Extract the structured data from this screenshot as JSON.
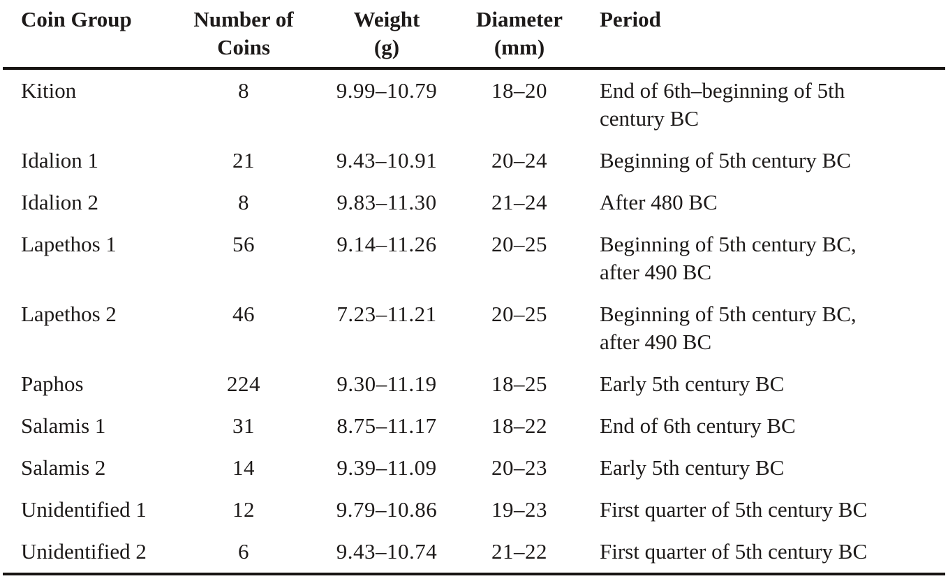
{
  "page": {
    "background_color": "#ffffff",
    "text_color": "#1d1a19",
    "rule_color": "#171412"
  },
  "table": {
    "headers": [
      {
        "id": "coin_group",
        "lines": [
          "Coin Group"
        ]
      },
      {
        "id": "number_of_coins",
        "lines": [
          "Number of",
          "Coins"
        ]
      },
      {
        "id": "weight_g",
        "lines": [
          "Weight",
          "(g)"
        ]
      },
      {
        "id": "diameter_mm",
        "lines": [
          "Diameter",
          "(mm)"
        ]
      },
      {
        "id": "period",
        "lines": [
          "Period"
        ]
      }
    ],
    "rows": [
      {
        "coin_group": "Kition",
        "number_of_coins": "8",
        "weight_g": "9.99–10.79",
        "diameter_mm": "18–20",
        "period": "End of 6th–beginning of 5th century BC"
      },
      {
        "coin_group": "Idalion 1",
        "number_of_coins": "21",
        "weight_g": "9.43–10.91",
        "diameter_mm": "20–24",
        "period": "Beginning of 5th century BC"
      },
      {
        "coin_group": "Idalion 2",
        "number_of_coins": "8",
        "weight_g": "9.83–11.30",
        "diameter_mm": "21–24",
        "period": "After 480 BC"
      },
      {
        "coin_group": "Lapethos 1",
        "number_of_coins": "56",
        "weight_g": "9.14–11.26",
        "diameter_mm": "20–25",
        "period": "Beginning of 5th century BC, after 490 BC"
      },
      {
        "coin_group": "Lapethos 2",
        "number_of_coins": "46",
        "weight_g": "7.23–11.21",
        "diameter_mm": "20–25",
        "period": "Beginning of 5th century BC, after 490 BC"
      },
      {
        "coin_group": "Paphos",
        "number_of_coins": "224",
        "weight_g": "9.30–11.19",
        "diameter_mm": "18–25",
        "period": "Early 5th century BC"
      },
      {
        "coin_group": "Salamis 1",
        "number_of_coins": "31",
        "weight_g": "8.75–11.17",
        "diameter_mm": "18–22",
        "period": "End of 6th century BC"
      },
      {
        "coin_group": "Salamis 2",
        "number_of_coins": "14",
        "weight_g": "9.39–11.09",
        "diameter_mm": "20–23",
        "period": "Early 5th century BC"
      },
      {
        "coin_group": "Unidentified 1",
        "number_of_coins": "12",
        "weight_g": "9.79–10.86",
        "diameter_mm": "19–23",
        "period": "First quarter of 5th century BC"
      },
      {
        "coin_group": "Unidentified 2",
        "number_of_coins": "6",
        "weight_g": "9.43–10.74",
        "diameter_mm": "21–22",
        "period": "First quarter of 5th century BC"
      }
    ]
  }
}
